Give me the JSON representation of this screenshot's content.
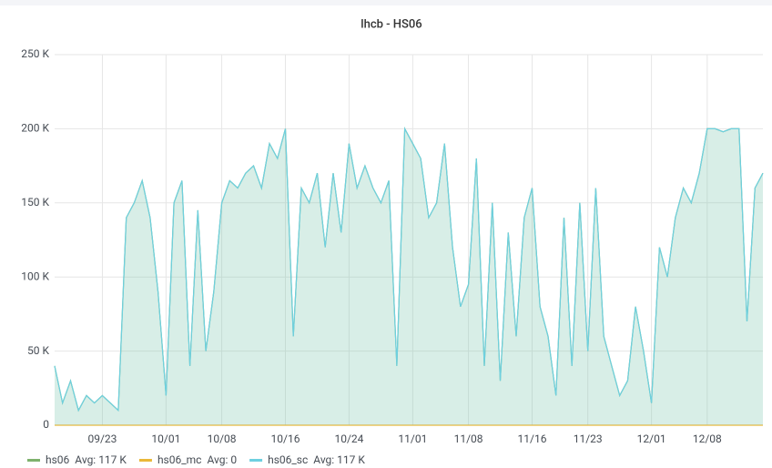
{
  "chart_data": {
    "type": "line",
    "title": "lhcb - HS06",
    "x": [
      null,
      null,
      null,
      null,
      null,
      null,
      "09/23",
      null,
      null,
      null,
      null,
      null,
      null,
      null,
      "10/01",
      null,
      null,
      null,
      null,
      null,
      null,
      "10/08",
      null,
      null,
      null,
      null,
      null,
      null,
      null,
      "10/16",
      null,
      null,
      null,
      null,
      null,
      null,
      null,
      "10/24",
      null,
      null,
      null,
      null,
      null,
      null,
      null,
      "11/01",
      null,
      null,
      null,
      null,
      null,
      null,
      "11/08",
      null,
      null,
      null,
      null,
      null,
      null,
      null,
      "11/16",
      null,
      null,
      null,
      null,
      null,
      null,
      "11/23",
      null,
      null,
      null,
      null,
      null,
      null,
      null,
      "12/01",
      null,
      null,
      null,
      null,
      null,
      null,
      "12/08",
      null,
      null,
      null,
      null,
      null,
      null,
      null
    ],
    "series": [
      {
        "name": "hs06",
        "legend_label": "Avg: 117 K",
        "color": "#7eb26d",
        "values": [
          40000,
          15000,
          30000,
          10000,
          20000,
          15000,
          20000,
          15000,
          10000,
          140000,
          150000,
          165000,
          140000,
          90000,
          20000,
          150000,
          165000,
          40000,
          145000,
          50000,
          90000,
          150000,
          165000,
          160000,
          170000,
          175000,
          160000,
          190000,
          180000,
          200000,
          60000,
          160000,
          150000,
          170000,
          120000,
          170000,
          130000,
          190000,
          160000,
          175000,
          160000,
          150000,
          165000,
          40000,
          200000,
          190000,
          180000,
          140000,
          150000,
          190000,
          120000,
          80000,
          95000,
          180000,
          40000,
          150000,
          30000,
          130000,
          60000,
          140000,
          160000,
          80000,
          60000,
          20000,
          140000,
          40000,
          150000,
          50000,
          160000,
          60000,
          40000,
          20000,
          30000,
          80000,
          50000,
          15000,
          120000,
          100000,
          140000,
          160000,
          150000,
          170000,
          200000,
          200000,
          198000,
          200000,
          200000,
          70000,
          160000,
          170000
        ]
      },
      {
        "name": "hs06_mc",
        "legend_label": "Avg: 0",
        "color": "#eab839",
        "values": [
          0,
          0,
          0,
          0,
          0,
          0,
          0,
          0,
          0,
          0,
          0,
          0,
          0,
          0,
          0,
          0,
          0,
          0,
          0,
          0,
          0,
          0,
          0,
          0,
          0,
          0,
          0,
          0,
          0,
          0,
          0,
          0,
          0,
          0,
          0,
          0,
          0,
          0,
          0,
          0,
          0,
          0,
          0,
          0,
          0,
          0,
          0,
          0,
          0,
          0,
          0,
          0,
          0,
          0,
          0,
          0,
          0,
          0,
          0,
          0,
          0,
          0,
          0,
          0,
          0,
          0,
          0,
          0,
          0,
          0,
          0,
          0,
          0,
          0,
          0,
          0,
          0,
          0,
          0,
          0,
          0,
          0,
          0,
          0,
          0,
          0,
          0,
          0,
          0,
          0
        ]
      },
      {
        "name": "hs06_sc",
        "legend_label": "Avg: 117 K",
        "color": "#6ed0e0",
        "values": [
          40000,
          15000,
          30000,
          10000,
          20000,
          15000,
          20000,
          15000,
          10000,
          140000,
          150000,
          165000,
          140000,
          90000,
          20000,
          150000,
          165000,
          40000,
          145000,
          50000,
          90000,
          150000,
          165000,
          160000,
          170000,
          175000,
          160000,
          190000,
          180000,
          200000,
          60000,
          160000,
          150000,
          170000,
          120000,
          170000,
          130000,
          190000,
          160000,
          175000,
          160000,
          150000,
          165000,
          40000,
          200000,
          190000,
          180000,
          140000,
          150000,
          190000,
          120000,
          80000,
          95000,
          180000,
          40000,
          150000,
          30000,
          130000,
          60000,
          140000,
          160000,
          80000,
          60000,
          20000,
          140000,
          40000,
          150000,
          50000,
          160000,
          60000,
          40000,
          20000,
          30000,
          80000,
          50000,
          15000,
          120000,
          100000,
          140000,
          160000,
          150000,
          170000,
          200000,
          200000,
          198000,
          200000,
          200000,
          70000,
          160000,
          170000
        ]
      }
    ],
    "ylim": [
      0,
      250000
    ],
    "yticks": [
      0,
      {
        "value": 50000,
        "label": "50 K"
      },
      {
        "value": 100000,
        "label": "100 K"
      },
      {
        "value": 150000,
        "label": "150 K"
      },
      {
        "value": 200000,
        "label": "200 K"
      },
      {
        "value": 250000,
        "label": "250 K"
      }
    ],
    "grid": true
  }
}
